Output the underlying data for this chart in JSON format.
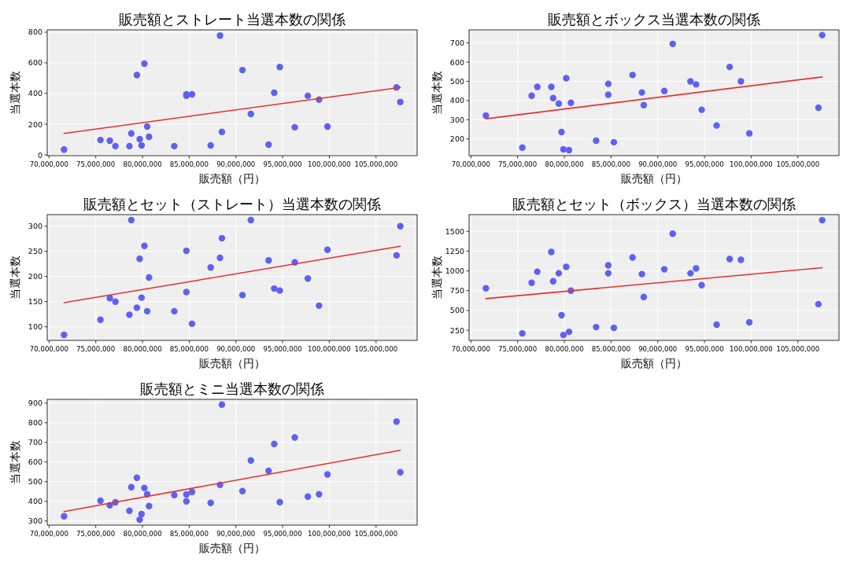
{
  "chart_data": [
    {
      "type": "scatter",
      "title": "販売額とストレート当選本数の関係",
      "xlabel": "販売額（円）",
      "ylabel": "当選本数",
      "xlim": [
        69800000,
        109400000
      ],
      "ylim": [
        -5,
        815
      ],
      "xticks": [
        {
          "value": 70000000,
          "label": "70,000,000"
        },
        {
          "value": 75000000,
          "label": "75,000,000"
        },
        {
          "value": 80000000,
          "label": "80,000,000"
        },
        {
          "value": 85000000,
          "label": "85,000,000"
        },
        {
          "value": 90000000,
          "label": "90,000,000"
        },
        {
          "value": 95000000,
          "label": "95,000,000"
        },
        {
          "value": 100000000,
          "label": "100,000,000"
        },
        {
          "value": 105000000,
          "label": "105,000,000"
        }
      ],
      "yticks": [
        0,
        200,
        400,
        600,
        800
      ],
      "grid": true,
      "marker": "circle",
      "series": [
        {
          "type": "scatter",
          "color": "#6060f0",
          "x": [
            71600000,
            75500000,
            76500000,
            77100000,
            78600000,
            78800000,
            79400000,
            79700000,
            79900000,
            80200000,
            80500000,
            80700000,
            83400000,
            84700000,
            84700000,
            85300000,
            87300000,
            88300000,
            88500000,
            90700000,
            91600000,
            93500000,
            94100000,
            94700000,
            96300000,
            97700000,
            98900000,
            99800000,
            107200000,
            107600000
          ],
          "values": [
            35,
            97,
            92,
            57,
            57,
            140,
            520,
            103,
            62,
            595,
            185,
            118,
            57,
            385,
            395,
            395,
            62,
            778,
            150,
            553,
            267,
            67,
            405,
            573,
            180,
            385,
            360,
            185,
            440,
            345
          ]
        },
        {
          "type": "line",
          "color": "#e83030",
          "line_style": "solid",
          "x": [
            71600000,
            107600000
          ],
          "values": [
            140,
            440
          ],
          "marker": "none"
        }
      ]
    },
    {
      "type": "scatter",
      "title": "販売額とボックス当選本数の関係",
      "xlabel": "販売額（円）",
      "ylabel": "当選本数",
      "xlim": [
        69800000,
        109400000
      ],
      "ylim": [
        113,
        768
      ],
      "xticks": [
        {
          "value": 70000000,
          "label": "70,000,000"
        },
        {
          "value": 75000000,
          "label": "75,000,000"
        },
        {
          "value": 80000000,
          "label": "80,000,000"
        },
        {
          "value": 85000000,
          "label": "85,000,000"
        },
        {
          "value": 90000000,
          "label": "90,000,000"
        },
        {
          "value": 95000000,
          "label": "95,000,000"
        },
        {
          "value": 100000000,
          "label": "100,000,000"
        },
        {
          "value": 105000000,
          "label": "105,000,000"
        }
      ],
      "yticks": [
        200,
        300,
        400,
        500,
        600,
        700
      ],
      "grid": true,
      "marker": "circle",
      "series": [
        {
          "type": "scatter",
          "color": "#6060f0",
          "x": [
            71600000,
            75500000,
            76500000,
            77100000,
            78600000,
            78800000,
            79400000,
            79700000,
            79900000,
            80200000,
            80500000,
            80700000,
            83400000,
            84700000,
            84700000,
            85300000,
            87300000,
            88300000,
            88500000,
            90700000,
            91600000,
            93500000,
            94100000,
            94700000,
            96300000,
            97700000,
            98900000,
            99800000,
            107200000,
            107600000
          ],
          "values": [
            322,
            155,
            425,
            471,
            471,
            413,
            384,
            236,
            146,
            516,
            142,
            388,
            191,
            487,
            430,
            183,
            533,
            442,
            376,
            450,
            695,
            500,
            484,
            352,
            270,
            575,
            500,
            229,
            363,
            741
          ]
        },
        {
          "type": "line",
          "color": "#e83030",
          "line_style": "solid",
          "x": [
            71600000,
            107600000
          ],
          "values": [
            305,
            523
          ],
          "marker": "none"
        }
      ]
    },
    {
      "type": "scatter",
      "title": "販売額とセット（ストレート）当選本数の関係",
      "xlabel": "販売額（円）",
      "ylabel": "当選本数",
      "xlim": [
        69800000,
        109400000
      ],
      "ylim": [
        73,
        323
      ],
      "xticks": [
        {
          "value": 70000000,
          "label": "70,000,000"
        },
        {
          "value": 75000000,
          "label": "75,000,000"
        },
        {
          "value": 80000000,
          "label": "80,000,000"
        },
        {
          "value": 85000000,
          "label": "85,000,000"
        },
        {
          "value": 90000000,
          "label": "90,000,000"
        },
        {
          "value": 95000000,
          "label": "95,000,000"
        },
        {
          "value": 100000000,
          "label": "100,000,000"
        },
        {
          "value": 105000000,
          "label": "105,000,000"
        }
      ],
      "yticks": [
        100,
        150,
        200,
        250,
        300
      ],
      "grid": true,
      "marker": "circle",
      "series": [
        {
          "type": "scatter",
          "color": "#6060f0",
          "x": [
            71600000,
            75500000,
            76500000,
            77100000,
            78600000,
            78800000,
            79400000,
            79700000,
            79900000,
            80200000,
            80500000,
            80700000,
            83400000,
            84700000,
            84700000,
            85300000,
            87300000,
            88300000,
            88500000,
            90700000,
            91600000,
            93500000,
            94100000,
            94700000,
            96300000,
            97700000,
            98900000,
            99800000,
            107200000,
            107600000
          ],
          "values": [
            84,
            114,
            157,
            150,
            124,
            312,
            138,
            235,
            158,
            261,
            131,
            198,
            131,
            251,
            169,
            106,
            218,
            237,
            276,
            163,
            312,
            232,
            176,
            172,
            228,
            196,
            142,
            253,
            242,
            300
          ]
        },
        {
          "type": "line",
          "color": "#e83030",
          "line_style": "solid",
          "x": [
            71600000,
            107600000
          ],
          "values": [
            148,
            260
          ],
          "marker": "none"
        }
      ]
    },
    {
      "type": "scatter",
      "title": "販売額とセット（ボックス）当選本数の関係",
      "xlabel": "販売額（円）",
      "ylabel": "当選本数",
      "xlim": [
        69800000,
        109400000
      ],
      "ylim": [
        122,
        1711
      ],
      "xticks": [
        {
          "value": 70000000,
          "label": "70,000,000"
        },
        {
          "value": 75000000,
          "label": "75,000,000"
        },
        {
          "value": 80000000,
          "label": "80,000,000"
        },
        {
          "value": 85000000,
          "label": "85,000,000"
        },
        {
          "value": 90000000,
          "label": "90,000,000"
        },
        {
          "value": 95000000,
          "label": "95,000,000"
        },
        {
          "value": 100000000,
          "label": "100,000,000"
        },
        {
          "value": 105000000,
          "label": "105,000,000"
        }
      ],
      "yticks": [
        250,
        500,
        750,
        1000,
        1250,
        1500
      ],
      "grid": true,
      "marker": "circle",
      "series": [
        {
          "type": "scatter",
          "color": "#6060f0",
          "x": [
            71600000,
            75500000,
            76500000,
            77100000,
            78600000,
            78800000,
            79400000,
            79700000,
            79900000,
            80200000,
            80500000,
            80700000,
            83400000,
            84700000,
            84700000,
            85300000,
            87300000,
            88300000,
            88500000,
            90700000,
            91600000,
            93500000,
            94100000,
            94700000,
            96300000,
            97700000,
            98900000,
            99800000,
            107200000,
            107600000
          ],
          "values": [
            780,
            210,
            850,
            990,
            1240,
            870,
            970,
            440,
            190,
            1050,
            230,
            750,
            290,
            1070,
            970,
            280,
            1170,
            960,
            670,
            1020,
            1470,
            970,
            1030,
            820,
            320,
            1150,
            1140,
            350,
            580,
            1640
          ]
        },
        {
          "type": "line",
          "color": "#e83030",
          "line_style": "solid",
          "x": [
            71600000,
            107600000
          ],
          "values": [
            650,
            1040
          ],
          "marker": "none"
        }
      ]
    },
    {
      "type": "scatter",
      "title": "販売額とミニ当選本数の関係",
      "xlabel": "販売額（円）",
      "ylabel": "当選本数",
      "xlim": [
        69800000,
        109400000
      ],
      "ylim": [
        279,
        919
      ],
      "xticks": [
        {
          "value": 70000000,
          "label": "70,000,000"
        },
        {
          "value": 75000000,
          "label": "75,000,000"
        },
        {
          "value": 80000000,
          "label": "80,000,000"
        },
        {
          "value": 85000000,
          "label": "85,000,000"
        },
        {
          "value": 90000000,
          "label": "90,000,000"
        },
        {
          "value": 95000000,
          "label": "95,000,000"
        },
        {
          "value": 100000000,
          "label": "100,000,000"
        },
        {
          "value": 105000000,
          "label": "105,000,000"
        }
      ],
      "yticks": [
        300,
        400,
        500,
        600,
        700,
        800,
        900
      ],
      "grid": true,
      "marker": "circle",
      "series": [
        {
          "type": "scatter",
          "color": "#6060f0",
          "x": [
            71600000,
            75500000,
            76500000,
            77100000,
            78600000,
            78800000,
            79400000,
            79700000,
            79900000,
            80200000,
            80500000,
            80700000,
            83400000,
            84700000,
            84700000,
            85300000,
            87300000,
            88300000,
            88500000,
            90700000,
            91600000,
            93500000,
            94100000,
            94700000,
            96300000,
            97700000,
            98900000,
            99800000,
            107200000,
            107600000
          ],
          "values": [
            324,
            403,
            380,
            395,
            352,
            472,
            520,
            307,
            335,
            468,
            436,
            376,
            432,
            435,
            400,
            448,
            392,
            484,
            892,
            452,
            608,
            555,
            692,
            396,
            725,
            424,
            436,
            537,
            806,
            548
          ]
        },
        {
          "type": "line",
          "color": "#e83030",
          "line_style": "solid",
          "x": [
            71600000,
            107600000
          ],
          "values": [
            348,
            660
          ],
          "marker": "none"
        }
      ]
    }
  ]
}
